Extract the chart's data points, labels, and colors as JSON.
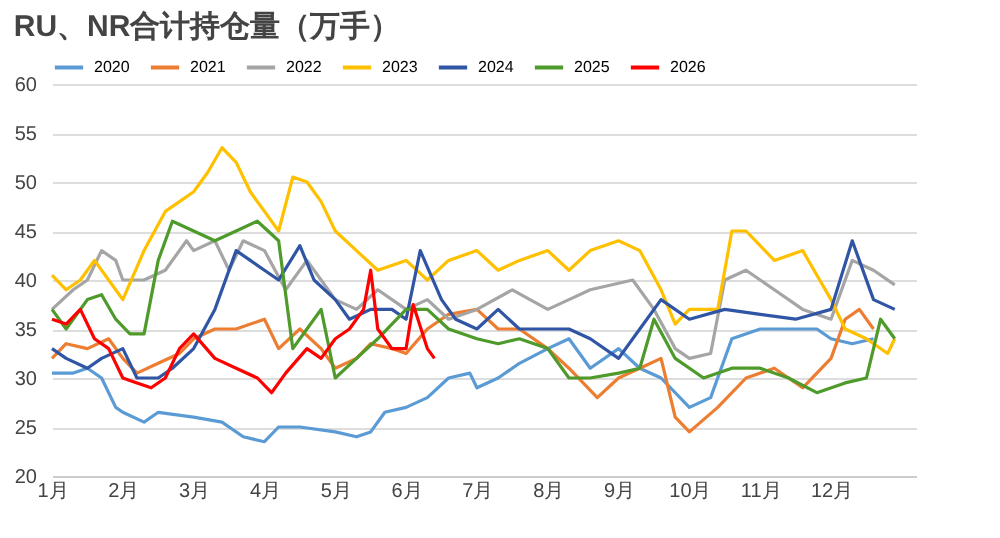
{
  "chart_data": {
    "type": "line",
    "title": "RU、NR合计持仓量（万手）",
    "legend": "top",
    "grid": "y",
    "ylim": [
      20,
      60
    ],
    "yticks": [
      20,
      25,
      30,
      35,
      40,
      45,
      50,
      55,
      60
    ],
    "xlim": [
      1,
      13.2
    ],
    "xticks": [
      {
        "value": 1,
        "label": "1月"
      },
      {
        "value": 2,
        "label": "2月"
      },
      {
        "value": 3,
        "label": "3月"
      },
      {
        "value": 4,
        "label": "4月"
      },
      {
        "value": 5,
        "label": "5月"
      },
      {
        "value": 6,
        "label": "6月"
      },
      {
        "value": 7,
        "label": "7月"
      },
      {
        "value": 8,
        "label": "8月"
      },
      {
        "value": 9,
        "label": "9月"
      },
      {
        "value": 10,
        "label": "10月"
      },
      {
        "value": 11,
        "label": "11月"
      },
      {
        "value": 12,
        "label": "12月"
      }
    ],
    "series": [
      {
        "name": "2020",
        "color": "#5b9bd5",
        "x": [
          1,
          1.3,
          1.5,
          1.7,
          1.9,
          2,
          2.3,
          2.5,
          3,
          3.4,
          3.7,
          4,
          4.2,
          4.5,
          5,
          5.3,
          5.5,
          5.7,
          6,
          6.3,
          6.6,
          6.9,
          7,
          7.3,
          7.6,
          8,
          8.3,
          8.6,
          9,
          9.3,
          9.6,
          10,
          10.3,
          10.6,
          11,
          11.4,
          11.8,
          12,
          12.3,
          12.6
        ],
        "values": [
          30.5,
          30.5,
          31,
          30,
          27,
          26.5,
          25.5,
          26.5,
          26,
          25.5,
          24,
          23.5,
          25,
          25,
          24.5,
          24,
          24.5,
          26.5,
          27,
          28,
          30,
          30.5,
          29,
          30,
          31.5,
          33,
          34,
          31,
          33,
          31,
          30,
          27,
          28,
          34,
          35,
          35,
          35,
          34,
          33.5,
          34
        ]
      },
      {
        "name": "2021",
        "color": "#ed7d31",
        "x": [
          1,
          1.2,
          1.5,
          1.8,
          2,
          2.2,
          2.5,
          2.8,
          3,
          3.3,
          3.6,
          4,
          4.2,
          4.5,
          4.8,
          5,
          5.3,
          5.5,
          5.8,
          6,
          6.3,
          6.6,
          7,
          7.3,
          7.6,
          8,
          8.3,
          8.7,
          9,
          9.3,
          9.6,
          9.8,
          10,
          10.4,
          10.8,
          11.2,
          11.6,
          12,
          12.2,
          12.4,
          12.6
        ],
        "values": [
          32,
          33.5,
          33,
          34,
          32,
          30.5,
          31.5,
          32.5,
          34,
          35,
          35,
          36,
          33,
          35,
          33,
          31,
          32,
          33.5,
          33,
          32.5,
          35,
          36.5,
          37,
          35,
          35,
          33,
          31,
          28,
          30,
          31,
          32,
          26,
          24.5,
          27,
          30,
          31,
          29,
          32,
          36,
          37,
          35
        ]
      },
      {
        "name": "2022",
        "color": "#a5a5a5",
        "x": [
          1,
          1.3,
          1.5,
          1.7,
          1.9,
          2,
          2.3,
          2.6,
          2.9,
          3,
          3.3,
          3.5,
          3.7,
          4,
          4.3,
          4.6,
          4.8,
          5,
          5.3,
          5.6,
          6,
          6.3,
          6.6,
          7,
          7.5,
          8,
          8.3,
          8.6,
          9.2,
          9.5,
          9.8,
          10,
          10.3,
          10.5,
          10.8,
          11.2,
          11.6,
          12,
          12.3,
          12.6,
          12.9
        ],
        "values": [
          37,
          39,
          40,
          43,
          42,
          40,
          40,
          41,
          44,
          43,
          44,
          41,
          44,
          43,
          39,
          42,
          40,
          38,
          37,
          39,
          37,
          38,
          36,
          37,
          39,
          37,
          38,
          39,
          40,
          37,
          33,
          32,
          32.5,
          40,
          41,
          39,
          37,
          36,
          42,
          41,
          39.5
        ]
      },
      {
        "name": "2023",
        "color": "#ffc000",
        "x": [
          1,
          1.2,
          1.4,
          1.6,
          1.8,
          2,
          2.3,
          2.6,
          2.8,
          3,
          3.2,
          3.4,
          3.6,
          3.8,
          4,
          4.2,
          4.4,
          4.6,
          4.8,
          5,
          5.3,
          5.6,
          6,
          6.3,
          6.6,
          7,
          7.3,
          7.6,
          8,
          8.3,
          8.6,
          9,
          9.3,
          9.6,
          9.8,
          10,
          10.4,
          10.6,
          10.8,
          11.2,
          11.6,
          12,
          12.2,
          12.5,
          12.8,
          12.9
        ],
        "values": [
          40.5,
          39,
          40,
          42,
          40,
          38,
          43,
          47,
          48,
          49,
          51,
          53.5,
          52,
          49,
          47,
          45,
          50.5,
          50,
          48,
          45,
          43,
          41,
          42,
          40,
          42,
          43,
          41,
          42,
          43,
          41,
          43,
          44,
          43,
          39,
          35.5,
          37,
          37,
          45,
          45,
          42,
          43,
          38,
          35,
          34,
          32.5,
          34
        ]
      },
      {
        "name": "2024",
        "color": "#2f55a4",
        "x": [
          1,
          1.2,
          1.5,
          1.7,
          2,
          2.2,
          2.5,
          2.7,
          3,
          3.3,
          3.6,
          3.8,
          4,
          4.2,
          4.5,
          4.7,
          5,
          5.2,
          5.5,
          5.8,
          6,
          6.2,
          6.5,
          6.7,
          7,
          7.3,
          7.6,
          8,
          8.3,
          8.6,
          9,
          9.3,
          9.6,
          10,
          10.5,
          11,
          11.5,
          12,
          12.3,
          12.6,
          12.9
        ],
        "values": [
          33,
          32,
          31,
          32,
          33,
          30,
          30,
          31,
          33,
          37,
          43,
          42,
          41,
          40,
          43.5,
          40,
          38,
          36,
          37,
          37,
          36,
          43,
          38,
          36,
          35,
          37,
          35,
          35,
          35,
          34,
          32,
          35,
          38,
          36,
          37,
          36.5,
          36,
          37,
          44,
          38,
          37
        ]
      },
      {
        "name": "2025",
        "color": "#4e9a2a",
        "x": [
          1,
          1.2,
          1.5,
          1.7,
          1.9,
          2.1,
          2.3,
          2.5,
          2.7,
          3,
          3.3,
          3.6,
          3.9,
          4.2,
          4.4,
          4.6,
          4.8,
          5,
          5.3,
          5.6,
          6,
          6.3,
          6.6,
          7,
          7.3,
          7.6,
          8,
          8.3,
          8.6,
          9,
          9.3,
          9.5,
          9.8,
          10.2,
          10.6,
          11,
          11.4,
          11.8,
          12.2,
          12.5,
          12.7,
          12.9
        ],
        "values": [
          37,
          35,
          38,
          38.5,
          36,
          34.5,
          34.5,
          42,
          46,
          45,
          44,
          45,
          46,
          44,
          33,
          35,
          37,
          30,
          32,
          34,
          37,
          37,
          35,
          34,
          33.5,
          34,
          33,
          30,
          30,
          30.5,
          31,
          36,
          32,
          30,
          31,
          31,
          30,
          28.5,
          29.5,
          30,
          36,
          34
        ]
      },
      {
        "name": "2026",
        "color": "#ff0000",
        "x": [
          1,
          1.2,
          1.4,
          1.6,
          1.8,
          2,
          2.2,
          2.4,
          2.6,
          2.8,
          3,
          3.3,
          3.6,
          3.9,
          4.1,
          4.3,
          4.6,
          4.8,
          5,
          5.2,
          5.4,
          5.5,
          5.6,
          5.8,
          6,
          6.1,
          6.3,
          6.4
        ],
        "values": [
          36,
          35.5,
          37,
          34,
          33,
          30,
          29.5,
          29,
          30,
          33,
          34.5,
          32,
          31,
          30,
          28.5,
          30.5,
          33,
          32,
          34,
          35,
          37,
          41,
          35,
          33,
          33,
          37.5,
          33,
          32
        ]
      }
    ]
  }
}
